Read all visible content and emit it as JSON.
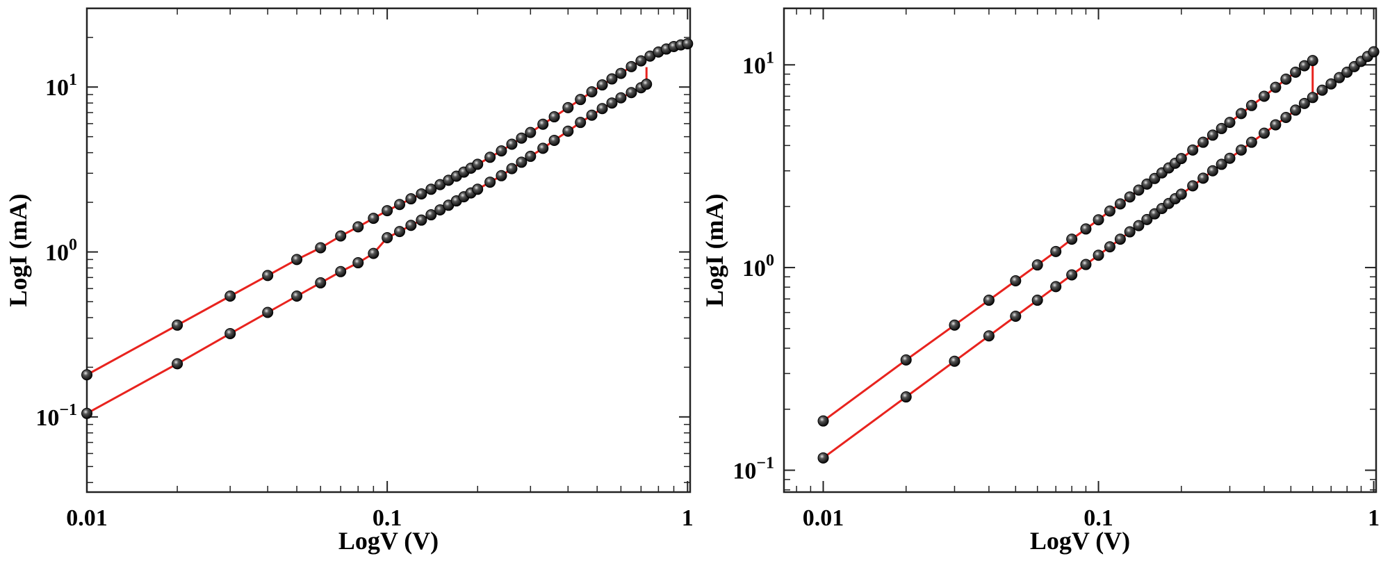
{
  "chart_data": [
    {
      "type": "scatter",
      "title": "",
      "xlabel": "LogV (V)",
      "ylabel": "LogI (mA)",
      "xscale": "log",
      "yscale": "log",
      "xlim": [
        0.01,
        1.02
      ],
      "ylim": [
        0.035,
        30
      ],
      "xticks": [
        {
          "value": 0.01,
          "label": "0.01"
        },
        {
          "value": 0.1,
          "label": "0.1"
        },
        {
          "value": 1,
          "label": "1"
        }
      ],
      "yticks": [
        {
          "value": 0.1,
          "base": "10",
          "exp": "−1"
        },
        {
          "value": 1,
          "base": "10",
          "exp": "0"
        },
        {
          "value": 10,
          "base": "10",
          "exp": "1"
        }
      ],
      "grid": false,
      "legend": "none",
      "colors": {
        "line": "#e8231e",
        "marker": "#111111",
        "highlight": "#dddddd"
      },
      "series": [
        {
          "x": [
            0.01,
            0.02,
            0.03,
            0.04,
            0.05,
            0.06,
            0.07,
            0.08,
            0.09,
            0.1,
            0.11,
            0.12,
            0.13,
            0.14,
            0.15,
            0.16,
            0.17,
            0.18,
            0.19,
            0.2,
            0.22,
            0.24,
            0.26,
            0.28,
            0.3,
            0.33,
            0.36,
            0.4,
            0.44,
            0.48,
            0.52,
            0.56,
            0.6,
            0.65,
            0.7,
            0.75,
            0.8,
            0.85,
            0.9,
            0.95,
            1.0
          ],
          "y": [
            0.18,
            0.36,
            0.54,
            0.72,
            0.9,
            1.06,
            1.25,
            1.42,
            1.6,
            1.78,
            1.94,
            2.1,
            2.25,
            2.4,
            2.56,
            2.72,
            2.88,
            3.05,
            3.22,
            3.4,
            3.75,
            4.1,
            4.5,
            4.9,
            5.3,
            5.95,
            6.6,
            7.5,
            8.4,
            9.35,
            10.3,
            11.2,
            12.1,
            13.3,
            14.4,
            15.4,
            16.3,
            17.0,
            17.6,
            18.0,
            18.3
          ]
        },
        {
          "x": [
            0.01,
            0.02,
            0.03,
            0.04,
            0.05,
            0.06,
            0.07,
            0.08,
            0.09,
            0.1,
            0.11,
            0.12,
            0.13,
            0.14,
            0.15,
            0.16,
            0.17,
            0.18,
            0.19,
            0.2,
            0.22,
            0.24,
            0.26,
            0.28,
            0.3,
            0.33,
            0.36,
            0.4,
            0.44,
            0.48,
            0.52,
            0.56,
            0.6,
            0.65,
            0.7,
            0.73
          ],
          "y": [
            0.105,
            0.21,
            0.32,
            0.43,
            0.54,
            0.65,
            0.76,
            0.86,
            0.98,
            1.22,
            1.33,
            1.45,
            1.56,
            1.68,
            1.8,
            1.92,
            2.04,
            2.16,
            2.28,
            2.4,
            2.65,
            2.9,
            3.2,
            3.5,
            3.8,
            4.25,
            4.75,
            5.4,
            6.1,
            6.75,
            7.4,
            8.0,
            8.6,
            9.25,
            9.9,
            10.4
          ]
        }
      ],
      "segments": [
        {
          "x": [
            0.73,
            0.73
          ],
          "y": [
            10.4,
            13.2
          ]
        }
      ]
    },
    {
      "type": "scatter",
      "title": "",
      "xlabel": "LogV (V)",
      "ylabel": "LogI (mA)",
      "xscale": "log",
      "yscale": "log",
      "xlim": [
        0.0072,
        1.02
      ],
      "ylim": [
        0.078,
        19
      ],
      "xticks": [
        {
          "value": 0.01,
          "label": "0.01"
        },
        {
          "value": 0.1,
          "label": "0.1"
        },
        {
          "value": 1,
          "label": "1"
        }
      ],
      "yticks": [
        {
          "value": 0.1,
          "base": "10",
          "exp": "−1"
        },
        {
          "value": 1,
          "base": "10",
          "exp": "0"
        },
        {
          "value": 10,
          "base": "10",
          "exp": "1"
        }
      ],
      "grid": false,
      "legend": "none",
      "colors": {
        "line": "#e8231e",
        "marker": "#111111",
        "highlight": "#dddddd"
      },
      "series": [
        {
          "x": [
            0.01,
            0.02,
            0.03,
            0.04,
            0.05,
            0.06,
            0.07,
            0.08,
            0.09,
            0.1,
            0.11,
            0.12,
            0.13,
            0.14,
            0.15,
            0.16,
            0.17,
            0.18,
            0.19,
            0.2,
            0.22,
            0.24,
            0.26,
            0.28,
            0.3,
            0.33,
            0.36,
            0.4,
            0.44,
            0.48,
            0.52,
            0.56,
            0.6
          ],
          "y": [
            0.175,
            0.35,
            0.52,
            0.69,
            0.86,
            1.03,
            1.2,
            1.38,
            1.55,
            1.72,
            1.9,
            2.06,
            2.23,
            2.41,
            2.58,
            2.75,
            2.93,
            3.1,
            3.27,
            3.45,
            3.8,
            4.15,
            4.5,
            4.85,
            5.2,
            5.75,
            6.3,
            7.0,
            7.75,
            8.5,
            9.2,
            9.9,
            10.5
          ]
        },
        {
          "x": [
            0.01,
            0.02,
            0.03,
            0.04,
            0.05,
            0.06,
            0.07,
            0.08,
            0.09,
            0.1,
            0.11,
            0.12,
            0.13,
            0.14,
            0.15,
            0.16,
            0.17,
            0.18,
            0.19,
            0.2,
            0.22,
            0.24,
            0.26,
            0.28,
            0.3,
            0.33,
            0.36,
            0.4,
            0.44,
            0.48,
            0.52,
            0.56,
            0.6,
            0.65,
            0.7,
            0.75,
            0.8,
            0.85,
            0.9,
            0.95,
            1.0
          ],
          "y": [
            0.115,
            0.23,
            0.345,
            0.46,
            0.575,
            0.69,
            0.805,
            0.92,
            1.035,
            1.15,
            1.265,
            1.38,
            1.5,
            1.61,
            1.725,
            1.84,
            1.955,
            2.07,
            2.185,
            2.3,
            2.53,
            2.76,
            3.0,
            3.23,
            3.46,
            3.8,
            4.15,
            4.6,
            5.06,
            5.5,
            5.98,
            6.45,
            6.9,
            7.5,
            8.05,
            8.65,
            9.2,
            9.8,
            10.4,
            11.0,
            11.6
          ]
        }
      ],
      "segments": [
        {
          "x": [
            0.6,
            0.6
          ],
          "y": [
            10.5,
            7.2
          ]
        }
      ]
    }
  ]
}
